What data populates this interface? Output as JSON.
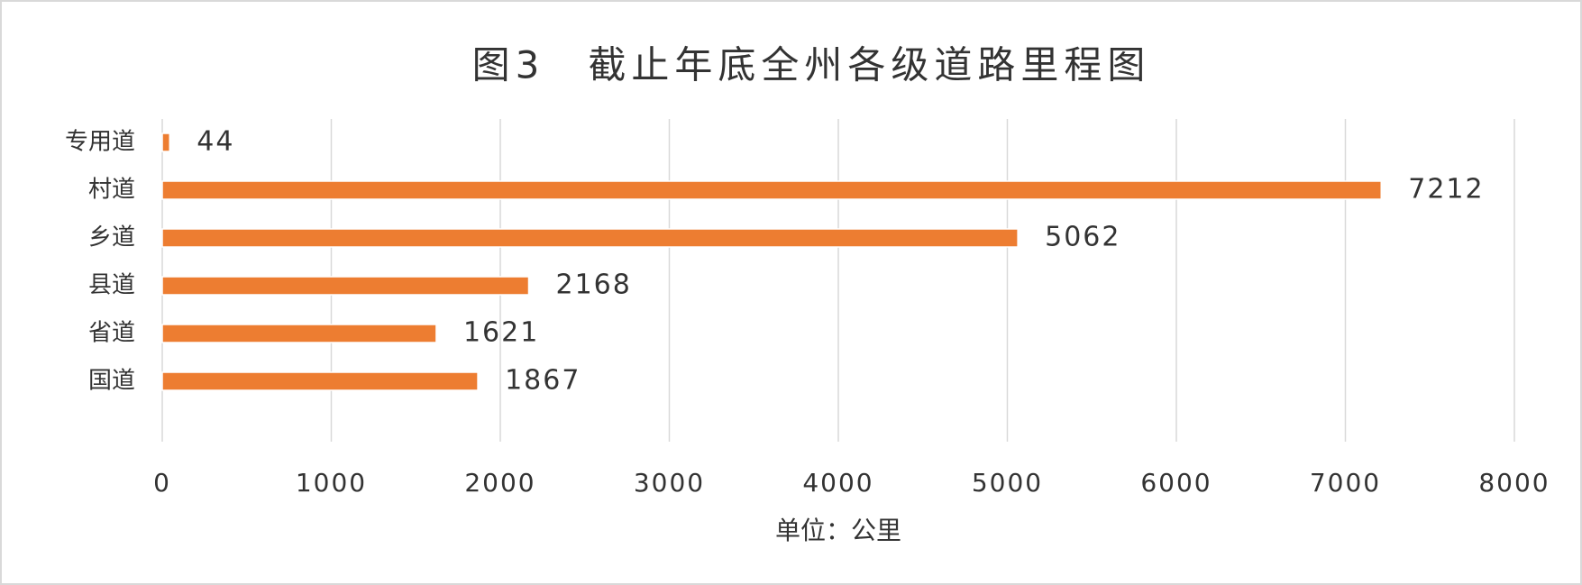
{
  "chart_data": {
    "type": "bar",
    "orientation": "horizontal",
    "title": "图3　截止年底全州各级道路里程图",
    "x_label": "单位：公里",
    "categories": [
      "专用道",
      "村道",
      "乡道",
      "县道",
      "省道",
      "国道"
    ],
    "values": [
      44,
      7212,
      5062,
      2168,
      1621,
      1867
    ],
    "color": "#ed7d31",
    "xlim": [
      0,
      8000
    ],
    "xticks": [
      0,
      1000,
      2000,
      3000,
      4000,
      5000,
      6000,
      7000,
      8000
    ],
    "grid": true
  }
}
